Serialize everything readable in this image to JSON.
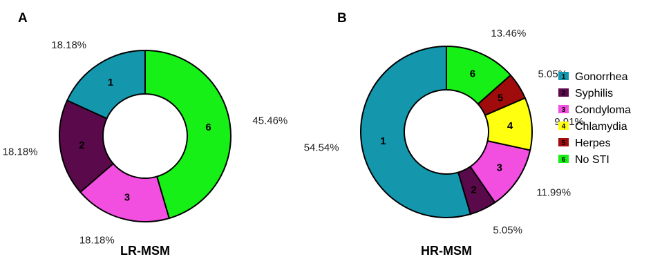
{
  "chart_data": [
    {
      "type": "pie",
      "panel": "A",
      "title": "LR-MSM",
      "categories": [
        "1",
        "2",
        "3",
        "6"
      ],
      "values": [
        18.18,
        18.18,
        18.18,
        45.46
      ],
      "labels": [
        "18.18%",
        "18.18%",
        "18.18%",
        "45.46%"
      ],
      "colors": [
        "#1496ad",
        "#5a0a4a",
        "#f24ee0",
        "#16f016"
      ]
    },
    {
      "type": "pie",
      "panel": "B",
      "title": "HR-MSM",
      "categories": [
        "1",
        "2",
        "3",
        "4",
        "5",
        "6"
      ],
      "values": [
        54.54,
        5.05,
        11.99,
        9.91,
        5.05,
        13.46
      ],
      "labels": [
        "54.54%",
        "5.05%",
        "11.99%",
        "9.91%",
        "5.05%",
        "13.46%"
      ],
      "colors": [
        "#1496ad",
        "#5a0a4a",
        "#f24ee0",
        "#ffff10",
        "#a00c0c",
        "#16f016"
      ]
    }
  ],
  "legend": {
    "placement": "right",
    "items": [
      {
        "num": "1",
        "label": "Gonorrhea",
        "color": "#1496ad"
      },
      {
        "num": "2",
        "label": "Syphilis",
        "color": "#5a0a4a"
      },
      {
        "num": "3",
        "label": "Condyloma",
        "color": "#f24ee0"
      },
      {
        "num": "4",
        "label": "Chlamydia",
        "color": "#ffff10"
      },
      {
        "num": "5",
        "label": "Herpes",
        "color": "#a00c0c"
      },
      {
        "num": "6",
        "label": "No STI",
        "color": "#16f016"
      }
    ]
  }
}
